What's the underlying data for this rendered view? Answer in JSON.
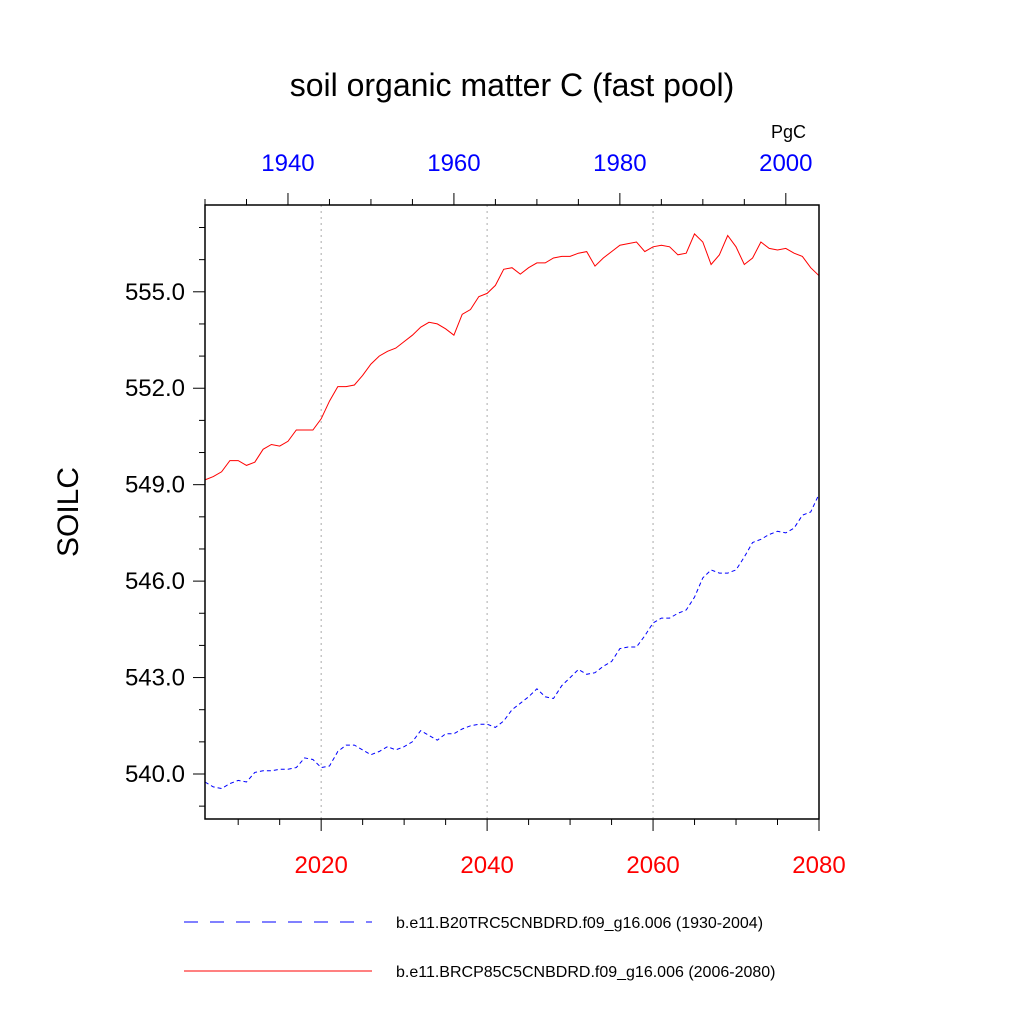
{
  "chart_data": {
    "type": "line",
    "title": "soil organic matter C (fast pool)",
    "ylabel": "SOILC",
    "units": "PgC",
    "ylim": [
      538.6,
      557.7
    ],
    "yticks": [
      540.0,
      543.0,
      546.0,
      549.0,
      552.0,
      555.0
    ],
    "ytick_labels": [
      "540.0",
      "543.0",
      "546.0",
      "549.0",
      "552.0",
      "555.0"
    ],
    "x_bottom": {
      "range": [
        2006,
        2080
      ],
      "ticks": [
        2020,
        2040,
        2060,
        2080
      ],
      "tick_labels": [
        "2020",
        "2040",
        "2060",
        "2080"
      ],
      "color": "#ff0000"
    },
    "x_top": {
      "range": [
        1930,
        2004
      ],
      "ticks": [
        1940,
        1960,
        1980,
        2000
      ],
      "tick_labels": [
        "1940",
        "1960",
        "1980",
        "2000"
      ],
      "color": "#0000ff"
    },
    "grid": "vertical dotted at 2020, 2040, 2060",
    "legend_position": "bottom",
    "series": [
      {
        "name": "b.e11.B20TRC5CNBDRD.f09_g16.006 (1930-2004)",
        "axis": "top",
        "color": "#0000ff",
        "style": "dashed",
        "x": [
          1930,
          1931,
          1932,
          1933,
          1934,
          1935,
          1936,
          1937,
          1938,
          1939,
          1940,
          1941,
          1942,
          1943,
          1944,
          1945,
          1946,
          1947,
          1948,
          1949,
          1950,
          1951,
          1952,
          1953,
          1954,
          1955,
          1956,
          1957,
          1958,
          1959,
          1960,
          1961,
          1962,
          1963,
          1964,
          1965,
          1966,
          1967,
          1968,
          1969,
          1970,
          1971,
          1972,
          1973,
          1974,
          1975,
          1976,
          1977,
          1978,
          1979,
          1980,
          1981,
          1982,
          1983,
          1984,
          1985,
          1986,
          1987,
          1988,
          1989,
          1990,
          1991,
          1992,
          1993,
          1994,
          1995,
          1996,
          1997,
          1998,
          1999,
          2000,
          2001,
          2002,
          2003,
          2004
        ],
        "y": [
          539.75,
          539.6,
          539.55,
          539.7,
          539.8,
          539.75,
          540.05,
          540.1,
          540.1,
          540.15,
          540.15,
          540.2,
          540.5,
          540.45,
          540.2,
          540.25,
          540.7,
          540.9,
          540.9,
          540.75,
          540.6,
          540.7,
          540.85,
          540.75,
          540.85,
          541.0,
          541.35,
          541.2,
          541.05,
          541.25,
          541.25,
          541.4,
          541.5,
          541.55,
          541.55,
          541.45,
          541.65,
          542.0,
          542.2,
          542.4,
          542.65,
          542.4,
          542.35,
          542.75,
          543.0,
          543.25,
          543.1,
          543.15,
          543.35,
          543.5,
          543.9,
          543.95,
          543.95,
          544.3,
          544.7,
          544.85,
          544.85,
          545.0,
          545.1,
          545.5,
          546.1,
          546.35,
          546.25,
          546.25,
          546.35,
          546.75,
          547.2,
          547.3,
          547.45,
          547.55,
          547.5,
          547.65,
          548.05,
          548.15,
          548.7
        ]
      },
      {
        "name": "b.e11.BRCP85C5CNBDRD.f09_g16.006 (2006-2080)",
        "axis": "bottom",
        "color": "#ff0000",
        "style": "solid",
        "x": [
          2006,
          2007,
          2008,
          2009,
          2010,
          2011,
          2012,
          2013,
          2014,
          2015,
          2016,
          2017,
          2018,
          2019,
          2020,
          2021,
          2022,
          2023,
          2024,
          2025,
          2026,
          2027,
          2028,
          2029,
          2030,
          2031,
          2032,
          2033,
          2034,
          2035,
          2036,
          2037,
          2038,
          2039,
          2040,
          2041,
          2042,
          2043,
          2044,
          2045,
          2046,
          2047,
          2048,
          2049,
          2050,
          2051,
          2052,
          2053,
          2054,
          2055,
          2056,
          2057,
          2058,
          2059,
          2060,
          2061,
          2062,
          2063,
          2064,
          2065,
          2066,
          2067,
          2068,
          2069,
          2070,
          2071,
          2072,
          2073,
          2074,
          2075,
          2076,
          2077,
          2078,
          2079,
          2080
        ],
        "y": [
          549.15,
          549.25,
          549.4,
          549.75,
          549.75,
          549.6,
          549.7,
          550.1,
          550.25,
          550.2,
          550.35,
          550.7,
          550.7,
          550.7,
          551.05,
          551.6,
          552.05,
          552.05,
          552.1,
          552.4,
          552.75,
          553.0,
          553.15,
          553.25,
          553.45,
          553.65,
          553.9,
          554.05,
          554.0,
          553.85,
          553.65,
          554.3,
          554.45,
          554.85,
          554.95,
          555.2,
          555.7,
          555.75,
          555.55,
          555.75,
          555.9,
          555.9,
          556.05,
          556.1,
          556.1,
          556.2,
          556.25,
          555.8,
          556.05,
          556.25,
          556.45,
          556.5,
          556.55,
          556.25,
          556.4,
          556.45,
          556.4,
          556.15,
          556.2,
          556.8,
          556.55,
          555.85,
          556.15,
          556.75,
          556.4,
          555.85,
          556.05,
          556.55,
          556.35,
          556.3,
          556.35,
          556.2,
          556.1,
          555.75,
          555.5
        ]
      }
    ]
  }
}
